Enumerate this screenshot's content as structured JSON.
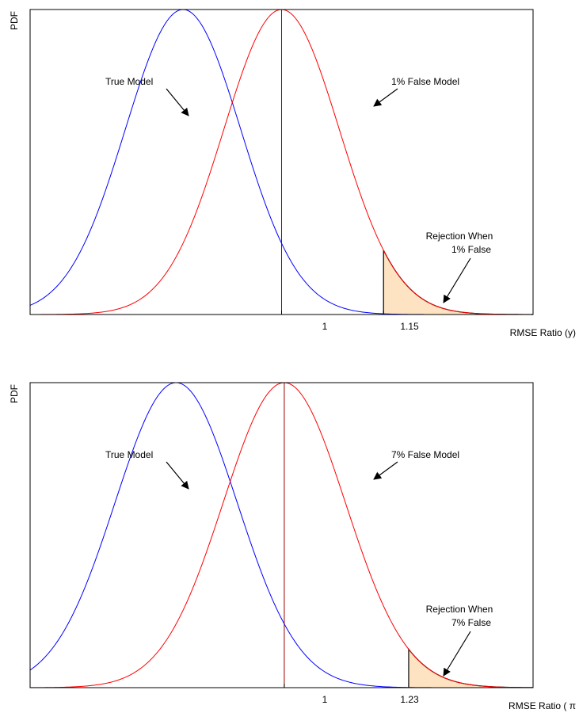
{
  "chart_data": [
    {
      "type": "line",
      "ylabel": "PDF",
      "xlabel": "RMSE Ratio (y)",
      "xlim": [
        0.63,
        1.37
      ],
      "ylim": [
        0,
        1
      ],
      "grid": false,
      "x_ticks": [
        {
          "value": 1,
          "label": "1"
        },
        {
          "value": 1.15,
          "label": "1.15"
        }
      ],
      "series": [
        {
          "mean": 0.855,
          "sd": 0.085,
          "color": "#0000ff",
          "annotation": "True Model"
        },
        {
          "mean": 1.0,
          "sd": 0.085,
          "color": "#ff0000",
          "annotation": "1% False Model"
        }
      ],
      "reference_line": {
        "x": 1.0,
        "color": "#990000"
      },
      "shaded_region": {
        "x_from": 1.15,
        "x_to": 1.37,
        "color": "#fde3c1",
        "annotation_lines": [
          "Rejection When",
          "1% False"
        ]
      }
    },
    {
      "type": "line",
      "ylabel": "PDF",
      "xlabel": "RMSE Ratio ( π",
      "xlim": [
        0.53,
        1.46
      ],
      "ylim": [
        0,
        1
      ],
      "grid": false,
      "x_ticks": [
        {
          "value": 1,
          "label": "1"
        },
        {
          "value": 1.23,
          "label": "1.23"
        }
      ],
      "series": [
        {
          "mean": 0.8,
          "sd": 0.113,
          "color": "#0000ff",
          "annotation": "True Model"
        },
        {
          "mean": 1.0,
          "sd": 0.113,
          "color": "#ff0000",
          "annotation": "7% False Model"
        }
      ],
      "reference_line": {
        "x": 1.0,
        "color": "#990000"
      },
      "shaded_region": {
        "x_from": 1.23,
        "x_to": 1.46,
        "color": "#fde3c1",
        "annotation_lines": [
          "Rejection When",
          "7% False"
        ]
      }
    }
  ]
}
